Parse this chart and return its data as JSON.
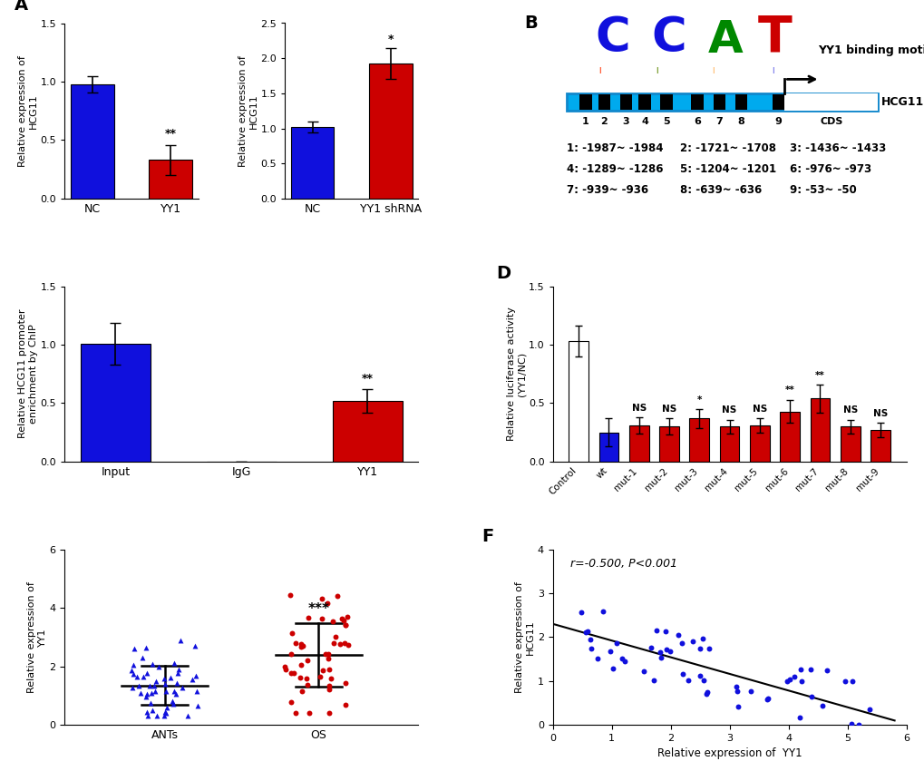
{
  "panel_A1": {
    "categories": [
      "NC",
      "YY1"
    ],
    "values": [
      0.98,
      0.33
    ],
    "errors": [
      0.07,
      0.13
    ],
    "colors": [
      "#1010dd",
      "#cc0000"
    ],
    "ylabel": "Relative expression of\nHCG11",
    "ylim": [
      0,
      1.5
    ],
    "yticks": [
      0.0,
      0.5,
      1.0,
      1.5
    ],
    "sig": [
      "",
      "**"
    ]
  },
  "panel_A2": {
    "categories": [
      "NC",
      "YY1 shRNA"
    ],
    "values": [
      1.02,
      1.92
    ],
    "errors": [
      0.08,
      0.22
    ],
    "colors": [
      "#1010dd",
      "#cc0000"
    ],
    "ylabel": "Relative expression of\nHCG11",
    "ylim": [
      0,
      2.5
    ],
    "yticks": [
      0.0,
      0.5,
      1.0,
      1.5,
      2.0,
      2.5
    ],
    "sig": [
      "",
      "*"
    ]
  },
  "panel_C": {
    "categories": [
      "Input",
      "IgG",
      "YY1"
    ],
    "values": [
      1.01,
      0.0,
      0.52
    ],
    "errors": [
      0.18,
      0.0,
      0.1
    ],
    "colors": [
      "#1010dd",
      "#ffffff",
      "#cc0000"
    ],
    "ylabel": "Relative HCG11 promoter\nenrichment by ChIP",
    "ylim": [
      0,
      1.5
    ],
    "yticks": [
      0.0,
      0.5,
      1.0,
      1.5
    ],
    "sig": [
      "",
      "",
      "**"
    ]
  },
  "panel_D": {
    "categories": [
      "Control",
      "wt",
      "mut-1",
      "mut-2",
      "mut-3",
      "mut-4",
      "mut-5",
      "mut-6",
      "mut-7",
      "mut-8",
      "mut-9"
    ],
    "values": [
      1.03,
      0.25,
      0.31,
      0.3,
      0.37,
      0.3,
      0.31,
      0.43,
      0.54,
      0.3,
      0.27
    ],
    "errors": [
      0.13,
      0.12,
      0.07,
      0.07,
      0.08,
      0.06,
      0.06,
      0.1,
      0.12,
      0.06,
      0.06
    ],
    "colors": [
      "#ffffff",
      "#1010dd",
      "#cc0000",
      "#cc0000",
      "#cc0000",
      "#cc0000",
      "#cc0000",
      "#cc0000",
      "#cc0000",
      "#cc0000",
      "#cc0000"
    ],
    "ylabel": "Relative luciferase activity\n（YY1/NC）",
    "ylim": [
      0,
      1.5
    ],
    "yticks": [
      0.0,
      0.5,
      1.0,
      1.5
    ],
    "sig": [
      "",
      "",
      "NS",
      "NS",
      "*",
      "NS",
      "NS",
      "**",
      "**",
      "NS",
      "NS"
    ]
  },
  "panel_E": {
    "ylabel": "Relative expression of\nYY1",
    "ylim": [
      0,
      6
    ],
    "yticks": [
      0,
      2,
      4,
      6
    ],
    "groups": [
      "ANTs",
      "OS"
    ],
    "ANTs_mean": 1.5,
    "ANTs_sd": 0.75,
    "OS_mean": 2.3,
    "OS_sd": 1.05,
    "sig": "***"
  },
  "panel_F": {
    "xlabel": "Relative expression of  YY1",
    "ylabel": "Relative expression of\nHCG11",
    "xlim": [
      0,
      6
    ],
    "ylim": [
      0,
      4
    ],
    "annotation": "r=-0.500, P<0.001",
    "slope": -0.38,
    "intercept": 2.3
  }
}
